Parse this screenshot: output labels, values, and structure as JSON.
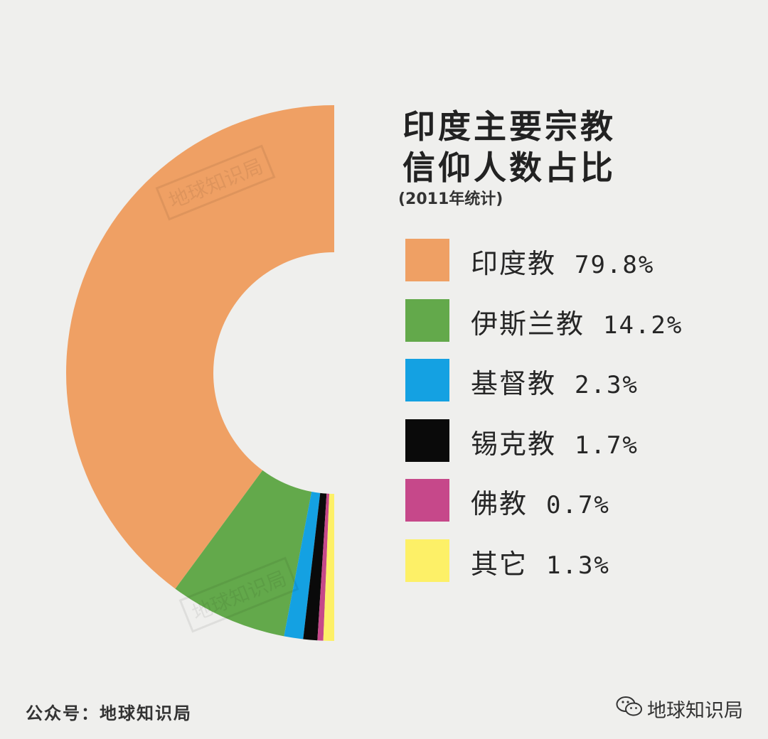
{
  "chart_data": {
    "type": "pie",
    "title_lines": [
      "印度主要宗教",
      "信仰人数占比"
    ],
    "subtitle": "(2011年统计)",
    "series": [
      {
        "name": "印度教",
        "value": 79.8,
        "label": "79.8%",
        "color": "#efa064"
      },
      {
        "name": "伊斯兰教",
        "value": 14.2,
        "label": "14.2%",
        "color": "#63a94b"
      },
      {
        "name": "基督教",
        "value": 2.3,
        "label": "2.3%",
        "color": "#14a1e2"
      },
      {
        "name": "锡克教",
        "value": 1.7,
        "label": "1.7%",
        "color": "#0a0a0a"
      },
      {
        "name": "佛教",
        "value": 0.7,
        "label": "0.7%",
        "color": "#c6488a"
      },
      {
        "name": "其它",
        "value": 1.3,
        "label": "1.3%",
        "color": "#fdf067"
      }
    ],
    "style": "half-donut"
  },
  "footer": {
    "source": "公众号：地球知识局",
    "brand": "地球知识局",
    "brand_icon": "wechat-icon"
  },
  "watermark": {
    "text": "地球知识局"
  },
  "colors": {
    "background": "#efefed"
  }
}
